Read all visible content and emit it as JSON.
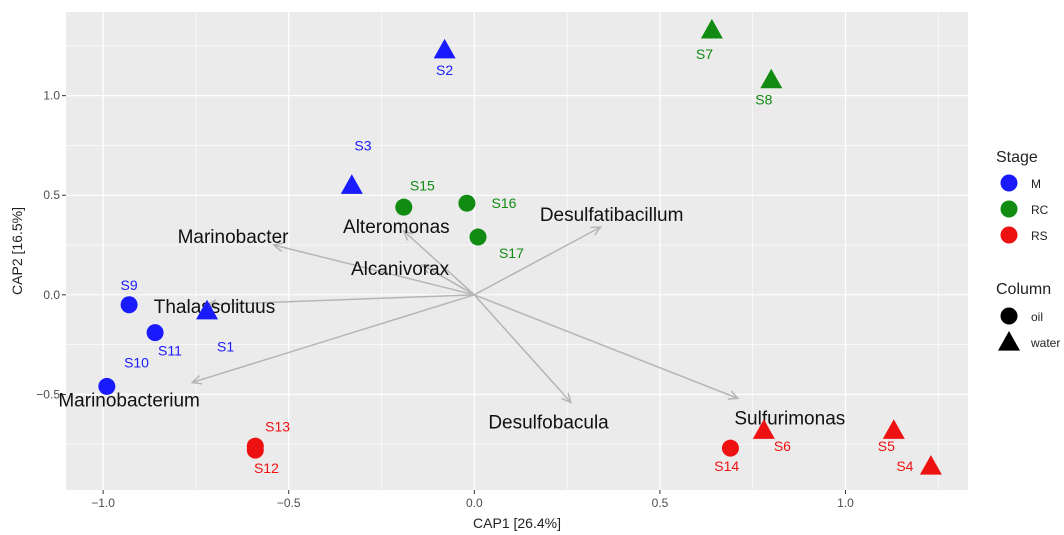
{
  "chart_data": {
    "type": "scatter",
    "title": "",
    "xlabel": "CAP1   [26.4%]",
    "ylabel": "CAP2   [16.5%]",
    "xlim": [
      -1.1,
      1.33
    ],
    "ylim": [
      -0.98,
      1.42
    ],
    "x_ticks": [
      -1.0,
      -0.5,
      0.0,
      0.5,
      1.0
    ],
    "x_tick_labels": [
      "−1.0",
      "−0.5",
      "0.0",
      "0.5",
      "1.0"
    ],
    "y_ticks": [
      -0.5,
      0.0,
      0.5,
      1.0
    ],
    "y_tick_labels": [
      "−0.5",
      "0.0",
      "0.5",
      "1.0"
    ],
    "grid": true,
    "legend_position": "right",
    "colors": {
      "M": "#1a1aff",
      "RC": "#128b12",
      "RS": "#ee1111",
      "arrow": "#b5b5b5",
      "panel": "#ebebeb",
      "grid": "#ffffff"
    },
    "legend": {
      "stage_title": "Stage",
      "stages": [
        {
          "label": "M",
          "color": "#1a1aff"
        },
        {
          "label": "RC",
          "color": "#128b12"
        },
        {
          "label": "RS",
          "color": "#ee1111"
        }
      ],
      "column_title": "Column",
      "columns": [
        {
          "label": "oil",
          "shape": "circle"
        },
        {
          "label": "water",
          "shape": "triangle"
        }
      ]
    },
    "points": [
      {
        "label": "S1",
        "x": -0.72,
        "y": -0.08,
        "stage": "M",
        "shape": "triangle",
        "label_dx": 0.05,
        "label_dy": -0.18
      },
      {
        "label": "S2",
        "x": -0.08,
        "y": 1.23,
        "stage": "M",
        "shape": "triangle",
        "label_dx": 0.0,
        "label_dy": -0.1
      },
      {
        "label": "S3",
        "x": -0.33,
        "y": 0.55,
        "stage": "M",
        "shape": "triangle",
        "label_dx": 0.03,
        "label_dy": 0.2
      },
      {
        "label": "S9",
        "x": -0.93,
        "y": -0.05,
        "stage": "M",
        "shape": "circle",
        "label_dx": 0.0,
        "label_dy": 0.1
      },
      {
        "label": "S10",
        "x": -0.99,
        "y": -0.46,
        "stage": "M",
        "shape": "circle",
        "label_dx": 0.08,
        "label_dy": 0.12
      },
      {
        "label": "S11",
        "x": -0.86,
        "y": -0.19,
        "stage": "M",
        "shape": "circle",
        "label_dx": 0.04,
        "label_dy": -0.09
      },
      {
        "label": "S7",
        "x": 0.64,
        "y": 1.33,
        "stage": "RC",
        "shape": "triangle",
        "label_dx": -0.02,
        "label_dy": -0.12
      },
      {
        "label": "S8",
        "x": 0.8,
        "y": 1.08,
        "stage": "RC",
        "shape": "triangle",
        "label_dx": -0.02,
        "label_dy": -0.1
      },
      {
        "label": "S15",
        "x": -0.19,
        "y": 0.44,
        "stage": "RC",
        "shape": "circle",
        "label_dx": 0.05,
        "label_dy": 0.11
      },
      {
        "label": "S16",
        "x": -0.02,
        "y": 0.46,
        "stage": "RC",
        "shape": "circle",
        "label_dx": 0.1,
        "label_dy": 0.0
      },
      {
        "label": "S17",
        "x": 0.01,
        "y": 0.29,
        "stage": "RC",
        "shape": "circle",
        "label_dx": 0.09,
        "label_dy": -0.08
      },
      {
        "label": "S4",
        "x": 1.23,
        "y": -0.86,
        "stage": "RS",
        "shape": "triangle",
        "label_dx": -0.07,
        "label_dy": 0.0
      },
      {
        "label": "S5",
        "x": 1.13,
        "y": -0.68,
        "stage": "RS",
        "shape": "triangle",
        "label_dx": -0.02,
        "label_dy": -0.08
      },
      {
        "label": "S6",
        "x": 0.78,
        "y": -0.68,
        "stage": "RS",
        "shape": "triangle",
        "label_dx": 0.05,
        "label_dy": -0.08
      },
      {
        "label": "S12",
        "x": -0.59,
        "y": -0.78,
        "stage": "RS",
        "shape": "circle",
        "label_dx": 0.03,
        "label_dy": -0.09
      },
      {
        "label": "S13",
        "x": -0.59,
        "y": -0.76,
        "stage": "RS",
        "shape": "circle",
        "label_dx": 0.06,
        "label_dy": 0.1
      },
      {
        "label": "S14",
        "x": 0.69,
        "y": -0.77,
        "stage": "RS",
        "shape": "circle",
        "label_dx": -0.01,
        "label_dy": -0.09
      }
    ],
    "arrows": [
      {
        "label": "Marinobacter",
        "x": -0.54,
        "y": 0.25,
        "label_x": -0.65,
        "label_y": 0.29
      },
      {
        "label": "Alteromonas",
        "x": -0.19,
        "y": 0.32,
        "label_x": -0.21,
        "label_y": 0.34
      },
      {
        "label": "Alcanivorax",
        "x": -0.14,
        "y": 0.15,
        "label_x": -0.2,
        "label_y": 0.13
      },
      {
        "label": "Desulfatibacillum",
        "x": 0.34,
        "y": 0.34,
        "label_x": 0.37,
        "label_y": 0.4
      },
      {
        "label": "Thalassolituus",
        "x": -0.72,
        "y": -0.05,
        "label_x": -0.7,
        "label_y": -0.06
      },
      {
        "label": "Marinobacterium",
        "x": -0.76,
        "y": -0.44,
        "label_x": -0.93,
        "label_y": -0.53
      },
      {
        "label": "Desulfobacula",
        "x": 0.26,
        "y": -0.54,
        "label_x": 0.2,
        "label_y": -0.64
      },
      {
        "label": "Sulfurimonas",
        "x": 0.71,
        "y": -0.52,
        "label_x": 0.85,
        "label_y": -0.62
      }
    ]
  }
}
